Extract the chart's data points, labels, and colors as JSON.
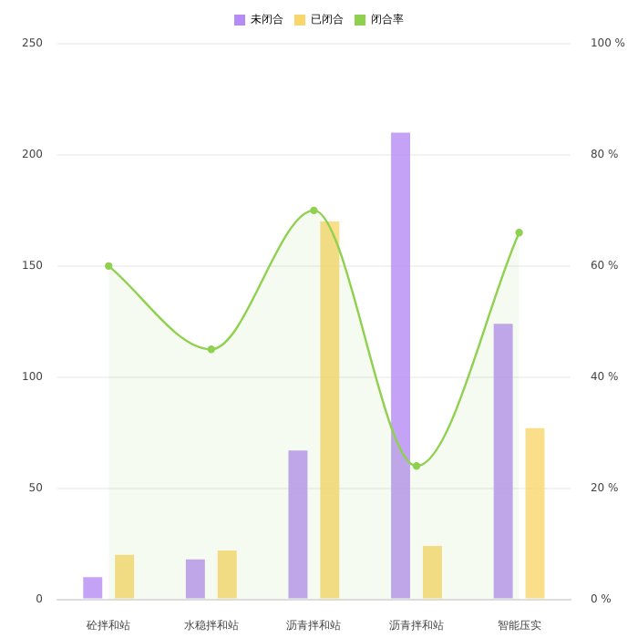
{
  "chart_data": {
    "type": "bar",
    "categories": [
      "砼拌和站",
      "水稳拌和站",
      "沥青拌和站",
      "沥青拌和站",
      "智能压实"
    ],
    "series": [
      {
        "name": "未闭合",
        "color": "#b58cf5",
        "values": [
          10,
          18,
          67,
          210,
          124
        ]
      },
      {
        "name": "已闭合",
        "color": "#f9d66b",
        "values": [
          20,
          22,
          170,
          24,
          77
        ]
      },
      {
        "name": "闭合率",
        "type": "area",
        "axis": "y2",
        "color": "#8fd14f",
        "values": [
          60,
          45,
          70,
          24,
          66
        ]
      }
    ],
    "ylim": [
      0,
      250
    ],
    "yticks": [
      0,
      50,
      100,
      150,
      200,
      250
    ],
    "y2lim": [
      0,
      100
    ],
    "y2ticks": [
      {
        "value": 0,
        "label": "0 %"
      },
      {
        "value": 20,
        "label": "20 %"
      },
      {
        "value": 40,
        "label": "40 %"
      },
      {
        "value": 60,
        "label": "60 %"
      },
      {
        "value": 80,
        "label": "80 %"
      },
      {
        "value": 100,
        "label": "100 %"
      }
    ],
    "grid": "y",
    "legend": "top",
    "marker": "circle"
  }
}
